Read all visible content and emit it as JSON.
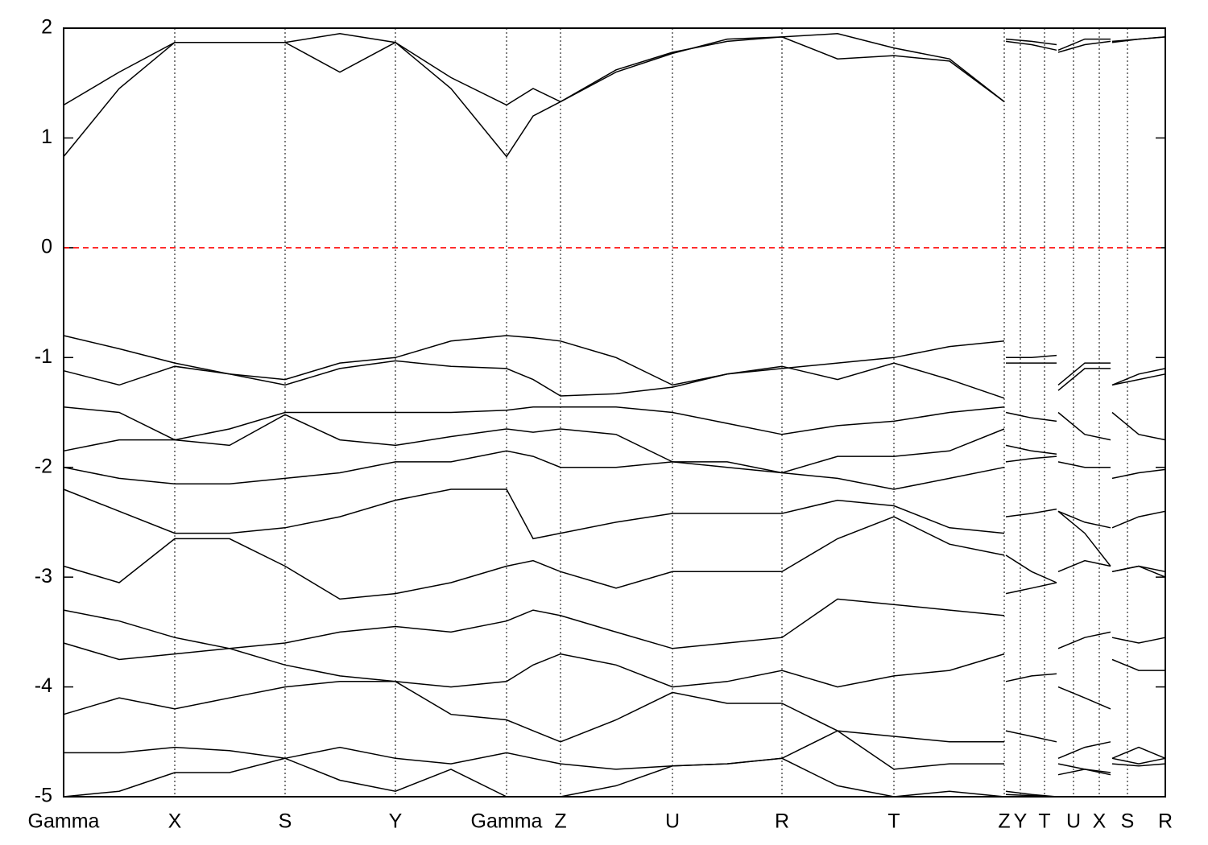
{
  "chart_data": {
    "type": "line",
    "xlim": [
      0,
      13.68
    ],
    "ylim": [
      -5,
      2
    ],
    "yticks": [
      -5,
      -4,
      -3,
      -2,
      -1,
      0,
      1,
      2
    ],
    "xticks": [
      {
        "value": 0,
        "label": "Gamma"
      },
      {
        "value": 1.38,
        "label": "X"
      },
      {
        "value": 2.75,
        "label": "S"
      },
      {
        "value": 4.12,
        "label": "Y"
      },
      {
        "value": 5.5,
        "label": "Gamma"
      },
      {
        "value": 6.17,
        "label": "Z"
      },
      {
        "value": 7.56,
        "label": "U"
      },
      {
        "value": 8.92,
        "label": "R"
      },
      {
        "value": 10.31,
        "label": "T"
      },
      {
        "value": 11.68,
        "label": "Z"
      },
      {
        "value": 11.88,
        "label": "Y"
      },
      {
        "value": 12.18,
        "label": "T"
      },
      {
        "value": 12.54,
        "label": "U"
      },
      {
        "value": 12.86,
        "label": "X"
      },
      {
        "value": 13.21,
        "label": "S"
      },
      {
        "value": 13.68,
        "label": "R"
      }
    ],
    "grid": true,
    "fermi_level": 0,
    "fermi_color": "#ff0000",
    "x": [
      0,
      0.69,
      1.38,
      2.06,
      2.75,
      3.43,
      4.12,
      4.81,
      5.5,
      5.83,
      6.17,
      6.86,
      7.56,
      8.24,
      8.92,
      9.61,
      10.31,
      11.0,
      11.68,
      11.69,
      11.7,
      12.02,
      12.33,
      12.34,
      12.35,
      12.68,
      13.0,
      13.01,
      13.02,
      13.35,
      13.68
    ],
    "series": [
      {
        "color": "#000000",
        "values": [
          0.83,
          1.45,
          1.87,
          1.87,
          1.87,
          1.6,
          1.87,
          1.45,
          0.83,
          1.2,
          1.33,
          1.6,
          1.77,
          1.9,
          1.92,
          1.72,
          1.75,
          1.7,
          1.33,
          null,
          1.88,
          1.85,
          1.8,
          null,
          1.78,
          1.85,
          1.88,
          null,
          1.87,
          1.9,
          1.92
        ]
      },
      {
        "color": "#000000",
        "values": [
          1.3,
          1.6,
          1.87,
          1.87,
          1.87,
          1.95,
          1.87,
          1.55,
          1.3,
          1.45,
          1.33,
          1.62,
          1.78,
          1.88,
          1.92,
          1.95,
          1.82,
          1.72,
          1.33,
          null,
          1.9,
          1.88,
          1.85,
          null,
          1.8,
          1.9,
          1.9,
          null,
          1.88,
          1.9,
          1.92
        ]
      },
      {
        "color": "#000000",
        "values": [
          -0.8,
          -0.92,
          -1.05,
          -1.15,
          -1.2,
          -1.05,
          -1.0,
          -0.85,
          -0.8,
          -0.82,
          -0.85,
          -1.0,
          -1.25,
          -1.15,
          -1.1,
          -1.05,
          -1.0,
          -0.9,
          -0.85,
          null,
          -1.0,
          -1.0,
          -0.98,
          null,
          -1.25,
          -1.05,
          -1.05,
          null,
          -1.25,
          -1.15,
          -1.1
        ]
      },
      {
        "color": "#000000",
        "values": [
          -1.12,
          -1.25,
          -1.08,
          -1.15,
          -1.25,
          -1.1,
          -1.03,
          -1.08,
          -1.1,
          -1.2,
          -1.35,
          -1.33,
          -1.27,
          -1.15,
          -1.08,
          -1.2,
          -1.05,
          -1.2,
          -1.37,
          null,
          -1.05,
          -1.05,
          -1.05,
          null,
          -1.3,
          -1.1,
          -1.1,
          null,
          -1.25,
          -1.2,
          -1.15
        ]
      },
      {
        "color": "#000000",
        "values": [
          -1.45,
          -1.5,
          -1.75,
          -1.65,
          -1.5,
          -1.5,
          -1.5,
          -1.5,
          -1.48,
          -1.45,
          -1.45,
          -1.45,
          -1.5,
          -1.6,
          -1.7,
          -1.62,
          -1.58,
          -1.5,
          -1.45,
          null,
          -1.5,
          -1.55,
          -1.58,
          null,
          -1.5,
          -1.7,
          -1.75,
          null,
          -1.5,
          -1.7,
          -1.75
        ]
      },
      {
        "color": "#000000",
        "values": [
          -1.85,
          -1.75,
          -1.75,
          -1.8,
          -1.52,
          -1.75,
          -1.8,
          -1.72,
          -1.65,
          -1.68,
          -1.65,
          -1.7,
          -1.95,
          -1.95,
          -2.05,
          -1.9,
          -1.9,
          -1.85,
          -1.65,
          null,
          -1.8,
          -1.85,
          -1.88,
          null,
          -1.95,
          -2.0,
          -2.0,
          null,
          -2.1,
          -2.05,
          -2.02
        ]
      },
      {
        "color": "#000000",
        "values": [
          -2.0,
          -2.1,
          -2.15,
          -2.15,
          -2.1,
          -2.05,
          -1.95,
          -1.95,
          -1.85,
          -1.9,
          -2.0,
          -2.0,
          -1.95,
          -2.0,
          -2.05,
          -2.1,
          -2.2,
          -2.1,
          -2.0,
          null,
          -1.95,
          -1.92,
          -1.9,
          null,
          -2.4,
          -2.5,
          -2.55,
          null,
          -2.55,
          -2.45,
          -2.4
        ]
      },
      {
        "color": "#000000",
        "values": [
          -2.2,
          -2.4,
          -2.6,
          -2.6,
          -2.55,
          -2.45,
          -2.3,
          -2.2,
          -2.2,
          -2.65,
          -2.6,
          -2.5,
          -2.42,
          -2.42,
          -2.42,
          -2.3,
          -2.35,
          -2.55,
          -2.6,
          null,
          -2.45,
          -2.42,
          -2.38,
          null,
          -2.4,
          -2.6,
          -2.9,
          null,
          -2.95,
          -2.9,
          -2.95
        ]
      },
      {
        "color": "#000000",
        "values": [
          -2.9,
          -3.05,
          -2.65,
          -2.65,
          -2.9,
          -3.2,
          -3.15,
          -3.05,
          -2.9,
          -2.85,
          -2.95,
          -3.1,
          -2.95,
          -2.95,
          -2.95,
          -2.65,
          -2.45,
          -2.7,
          -2.8,
          null,
          -2.8,
          -2.95,
          -3.05,
          null,
          -2.95,
          -2.85,
          -2.9,
          null,
          -2.95,
          -2.9,
          -3.0
        ]
      },
      {
        "color": "#000000",
        "values": [
          -3.3,
          -3.4,
          -3.55,
          -3.65,
          -3.6,
          -3.5,
          -3.45,
          -3.5,
          -3.4,
          -3.3,
          -3.35,
          -3.5,
          -3.65,
          -3.6,
          -3.55,
          -3.2,
          -3.25,
          -3.3,
          -3.35,
          null,
          -3.15,
          -3.1,
          -3.05,
          null,
          -3.65,
          -3.55,
          -3.5,
          null,
          -3.55,
          -3.6,
          -3.55
        ]
      },
      {
        "color": "#000000",
        "values": [
          -3.6,
          -3.75,
          -3.7,
          -3.65,
          -3.8,
          -3.9,
          -3.95,
          -4.0,
          -3.95,
          -3.8,
          -3.7,
          -3.8,
          -4.0,
          -3.95,
          -3.85,
          -4.0,
          -3.9,
          -3.85,
          -3.7,
          null,
          -3.95,
          -3.9,
          -3.88,
          null,
          -4.0,
          -4.1,
          -4.2,
          null,
          -3.75,
          -3.85,
          -3.85
        ]
      },
      {
        "color": "#000000",
        "values": [
          -4.25,
          -4.1,
          -4.2,
          -4.1,
          -4.0,
          -3.95,
          -3.95,
          -4.25,
          -4.3,
          -4.4,
          -4.5,
          -4.3,
          -4.05,
          -4.15,
          -4.15,
          -4.4,
          -4.45,
          -4.5,
          -4.5,
          null,
          -4.4,
          -4.45,
          -4.5,
          null,
          -4.65,
          -4.55,
          -4.5,
          null,
          -4.65,
          -4.55,
          -4.65
        ]
      },
      {
        "color": "#000000",
        "values": [
          -4.6,
          -4.6,
          -4.55,
          -4.58,
          -4.65,
          -4.55,
          -4.65,
          -4.7,
          -4.6,
          -4.65,
          -4.7,
          -4.75,
          -4.72,
          -4.7,
          -4.65,
          -4.4,
          -4.75,
          -4.7,
          -4.7,
          null,
          -4.95,
          -4.98,
          -5.0,
          null,
          -4.7,
          -4.75,
          -4.8,
          null,
          -4.65,
          -4.7,
          -4.65
        ]
      },
      {
        "color": "#000000",
        "values": [
          -5.0,
          -4.95,
          -4.78,
          -4.78,
          -4.65,
          -4.85,
          -4.95,
          -4.75,
          -5.0,
          -5.0,
          -5.0,
          -4.9,
          -4.72,
          -4.7,
          -4.65,
          -4.9,
          -5.0,
          -4.95,
          -5.0,
          null,
          -4.98,
          -4.99,
          -5.0,
          null,
          -4.8,
          -4.75,
          -4.78,
          null,
          -4.7,
          -4.72,
          -4.7
        ]
      }
    ]
  }
}
